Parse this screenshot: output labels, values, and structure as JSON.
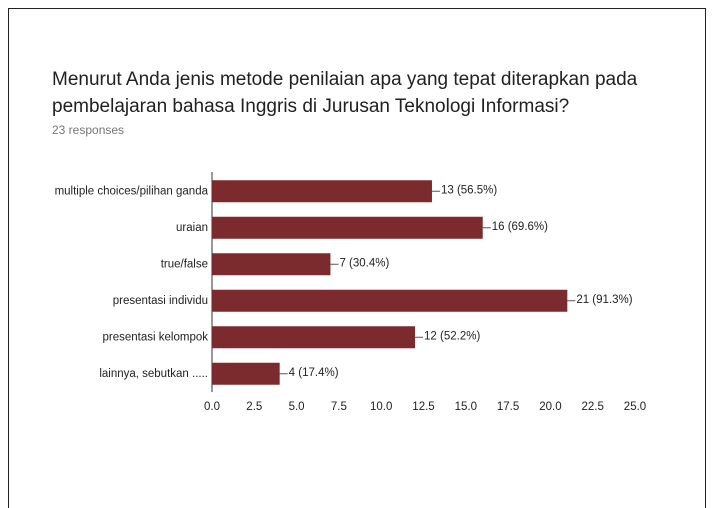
{
  "chart_data": {
    "type": "barh",
    "title": "Menurut Anda jenis metode penilaian apa yang tepat diterapkan pada pembelajaran bahasa Inggris di Jurusan Teknologi Informasi?",
    "subtitle": "23 responses",
    "categories": [
      "multiple choices/pilihan ganda",
      "uraian",
      "true/false",
      "presentasi individu",
      "presentasi kelompok",
      "lainnya, sebutkan ....."
    ],
    "values": [
      13,
      16,
      7,
      21,
      12,
      4
    ],
    "value_labels": [
      "13 (56.5%)",
      "16 (69.6%)",
      "7 (30.4%)",
      "21 (91.3%)",
      "12 (52.2%)",
      "4 (17.4%)"
    ],
    "color": "#7b2a2e",
    "xlim": [
      0,
      25
    ],
    "xticks": [
      {
        "value": 0,
        "label": "0.0"
      },
      2.5,
      {
        "value": 5,
        "label": "5.0"
      },
      7.5,
      {
        "value": 10,
        "label": "10.0"
      },
      12.5,
      {
        "value": 15,
        "label": "15.0"
      },
      17.5,
      {
        "value": 20,
        "label": "20.0"
      },
      22.5,
      {
        "value": 25,
        "label": "25.0"
      }
    ],
    "grid": false
  }
}
